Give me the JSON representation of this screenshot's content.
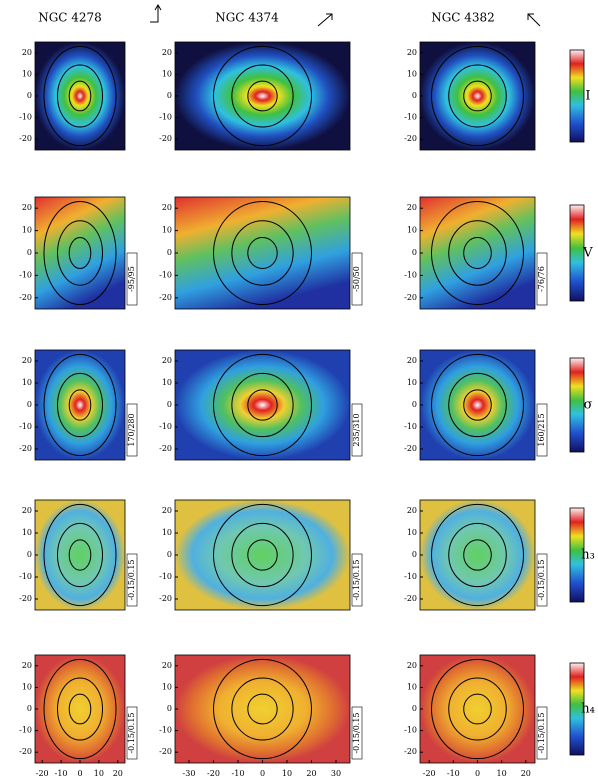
{
  "headers": [
    "NGC 4278",
    "NGC 4374",
    "NGC 4382"
  ],
  "rows": [
    {
      "quantity": "I"
    },
    {
      "quantity": "V",
      "ranges": [
        "-95/95",
        "-50/50",
        "-76/76"
      ]
    },
    {
      "quantity": "σ",
      "ranges": [
        "170/280",
        "235/310",
        "160/215"
      ]
    },
    {
      "quantity": "h₃",
      "ranges": [
        "-0.15/0.15",
        "-0.15/0.15",
        "-0.15/0.15"
      ]
    },
    {
      "quantity": "h₄",
      "ranges": [
        "-0.15/0.15",
        "-0.15/0.15",
        "-0.15/0.15"
      ]
    }
  ],
  "y_ticks": [
    "20",
    "10",
    "0",
    "-10",
    "-20"
  ],
  "x_ticks": [
    [
      "-20",
      "-10",
      "0",
      "10",
      "20"
    ],
    [
      "-30",
      "-20",
      "-10",
      "0",
      "10",
      "20",
      "30"
    ],
    [
      "-20",
      "-10",
      "0",
      "10",
      "20"
    ]
  ]
}
